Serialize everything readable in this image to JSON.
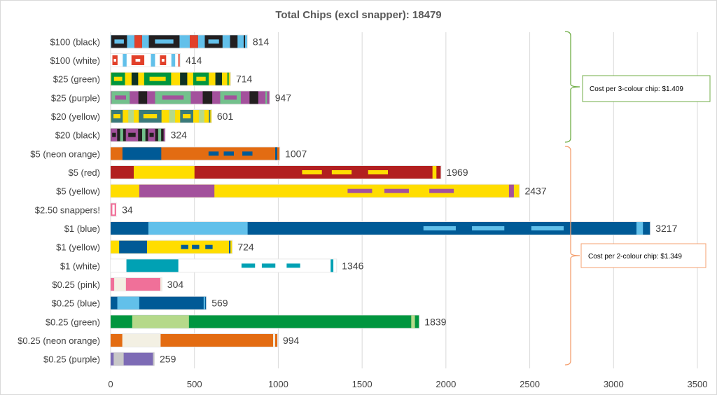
{
  "chart_data": {
    "type": "bar",
    "orientation": "horizontal",
    "title": "Total Chips (excl snapper): 18479",
    "xlabel": "",
    "ylabel": "",
    "xlim": [
      0,
      3500
    ],
    "x_ticks": [
      "0",
      "500",
      "1000",
      "1500",
      "2000",
      "2500",
      "3000",
      "3500"
    ],
    "grid": true,
    "legend": "none",
    "categories": [
      "$100 (black)",
      "$100 (white)",
      "$25 (green)",
      "$25 (purple)",
      "$20 (yellow)",
      "$20 (black)",
      "$5 (neon orange)",
      "$5 (red)",
      "$5 (yellow)",
      "$2.50 snappers!",
      "$1 (blue)",
      "$1 (yellow)",
      "$1 (white)",
      "$0.25 (pink)",
      "$0.25 (blue)",
      "$0.25 (green)",
      "$0.25 (neon orange)",
      "$0.25 (purple)"
    ],
    "values": [
      814,
      414,
      714,
      947,
      601,
      324,
      1007,
      1969,
      2437,
      34,
      3217,
      724,
      1346,
      304,
      569,
      1839,
      994,
      259
    ],
    "data_labels": [
      "814",
      "414",
      "714",
      "947",
      "601",
      "324",
      "1007",
      "1969",
      "2437",
      "34",
      "3217",
      "724",
      "1346",
      "304",
      "569",
      "1839",
      "994",
      "259"
    ],
    "bar_styles": [
      {
        "base": "#62c0ea",
        "accent": "#e2402a",
        "dark": "#231f20",
        "pattern": "three-colour"
      },
      {
        "base": "#ffffff",
        "accent": "#e2402a",
        "dark": "#62c0ea",
        "pattern": "three-colour"
      },
      {
        "base": "#ffdd00",
        "accent": "#00963f",
        "dark": "#0f3325",
        "pattern": "three-colour"
      },
      {
        "base": "#a3519c",
        "accent": "#73c18c",
        "dark": "#231f20",
        "pattern": "three-colour"
      },
      {
        "base": "#ffdd00",
        "accent": "#3a7a7a",
        "dark": "#b5d98a",
        "pattern": "three-colour"
      },
      {
        "base": "#231f20",
        "accent": "#a3519c",
        "dark": "#73c18c",
        "pattern": "three-colour"
      },
      {
        "base": "#e36c12",
        "accent": "#005a96",
        "pattern": "two-colour"
      },
      {
        "base": "#b21f1f",
        "accent": "#ffdd00",
        "pattern": "two-colour"
      },
      {
        "base": "#ffdd00",
        "accent": "#a3519c",
        "pattern": "two-colour"
      },
      {
        "base": "#f07099",
        "accent": "#ffffff",
        "pattern": "two-colour"
      },
      {
        "base": "#005a96",
        "accent": "#62c0ea",
        "pattern": "two-colour"
      },
      {
        "base": "#ffdd00",
        "accent": "#005a96",
        "pattern": "two-colour"
      },
      {
        "base": "#ffffff",
        "accent": "#00a1b4",
        "pattern": "two-colour"
      },
      {
        "base": "#f07099",
        "accent": "#f3f0e3",
        "pattern": "two-colour"
      },
      {
        "base": "#005a96",
        "accent": "#62c0ea",
        "pattern": "two-colour"
      },
      {
        "base": "#00963f",
        "accent": "#b5d98a",
        "pattern": "two-colour"
      },
      {
        "base": "#e36c12",
        "accent": "#f3f0e3",
        "pattern": "two-colour"
      },
      {
        "base": "#7d6bb5",
        "accent": "#c8c8c8",
        "pattern": "two-colour"
      }
    ],
    "annotations": [
      {
        "text": "Cost per 3-colour chip: $1.409",
        "group": "three-colour",
        "color": "#70ad47",
        "spans_categories": [
          "$100 (black)",
          "$20 (black)"
        ]
      },
      {
        "text": "Cost per 2-colour chip: $1.349",
        "group": "two-colour",
        "color": "#f4a070",
        "spans_categories": [
          "$5 (neon orange)",
          "$0.25 (purple)"
        ]
      }
    ]
  }
}
